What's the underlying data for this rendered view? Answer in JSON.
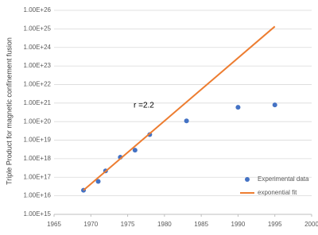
{
  "chart_data": {
    "type": "scatter",
    "ylabel": "Triple Product for magnetic confinement fusion",
    "annotation": "r =2.2",
    "series": [
      {
        "name": "Experimental data",
        "mode": "markers",
        "color": "#4472c4",
        "x": [
          1969,
          1971,
          1972,
          1974,
          1976,
          1978,
          1983,
          1990,
          1995
        ],
        "values": [
          2e+16,
          6e+16,
          2.2e+17,
          1.2e+18,
          2.9e+18,
          2e+19,
          1.1e+20,
          5.9e+20,
          8e+20
        ]
      },
      {
        "name": "exponential fit",
        "mode": "lines",
        "color": "#ed7d31",
        "x": [
          1969,
          1995
        ],
        "values": [
          2e+16,
          1.35e+25
        ]
      }
    ],
    "xlim": [
      1965,
      2000
    ],
    "xticks": [
      1965,
      1970,
      1975,
      1980,
      1985,
      1990,
      1995,
      2000
    ],
    "ylim": [
      1000000000000000.0,
      1e+26
    ],
    "log_y": true,
    "yticks": [
      {
        "value": 1000000000000000.0,
        "label": "1.00E+15"
      },
      {
        "value": 1e+16,
        "label": "1.00E+16"
      },
      {
        "value": 1e+17,
        "label": "1.00E+17"
      },
      {
        "value": 1e+18,
        "label": "1.00E+18"
      },
      {
        "value": 1e+19,
        "label": "1.00E+19"
      },
      {
        "value": 1e+20,
        "label": "1.00E+20"
      },
      {
        "value": 1e+21,
        "label": "1.00E+21"
      },
      {
        "value": 1e+22,
        "label": "1.00E+22"
      },
      {
        "value": 1e+23,
        "label": "1.00E+23"
      },
      {
        "value": 1e+24,
        "label": "1.00E+24"
      },
      {
        "value": 1e+25,
        "label": "1.00E+25"
      },
      {
        "value": 1e+26,
        "label": "1.00E+26"
      }
    ],
    "grid": true,
    "legend": "lower right"
  }
}
